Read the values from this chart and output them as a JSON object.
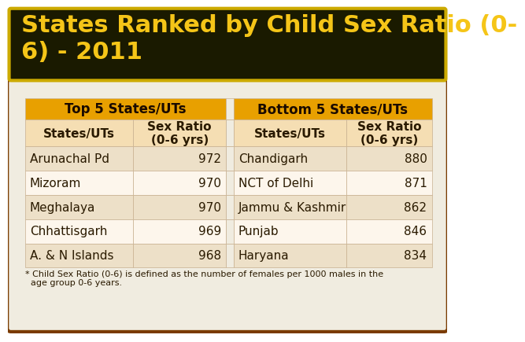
{
  "title_text": "States Ranked by Child Sex Ratio (0-\n6) - 2011",
  "title_bg": "#1a1a00",
  "title_border": "#ccaa00",
  "title_color": "#f5c518",
  "outer_bg": "#f0ece0",
  "outer_border": "#7a3b00",
  "header_bg": "#e8a000",
  "header_text_color": "#1a0a00",
  "subheader_bg": "#f5deb3",
  "row_odd_bg": "#fdf6ec",
  "row_even_bg": "#ede0c8",
  "cell_text_color": "#2a1a00",
  "header1_text": "Top 5 States/UTs",
  "header2_text": "Bottom 5 States/UTs",
  "col1_label": "States/UTs",
  "col2_label": "Sex Ratio\n(0-6 yrs)",
  "col3_label": "States/UTs",
  "col4_label": "Sex Ratio\n(0-6 yrs)",
  "top_states": [
    "Arunachal Pd",
    "Mizoram",
    "Meghalaya",
    "Chhattisgarh",
    "A. & N Islands"
  ],
  "top_ratios": [
    "972",
    "970",
    "970",
    "969",
    "968"
  ],
  "bottom_states": [
    "Chandigarh",
    "NCT of Delhi",
    "Jammu & Kashmir",
    "Punjab",
    "Haryana"
  ],
  "bottom_ratios": [
    "880",
    "871",
    "862",
    "846",
    "834"
  ],
  "footnote_line1": "* Child Sex Ratio (0-6) is defined as the number of females per 1000 males in the",
  "footnote_line2": "  age group 0-6 years."
}
